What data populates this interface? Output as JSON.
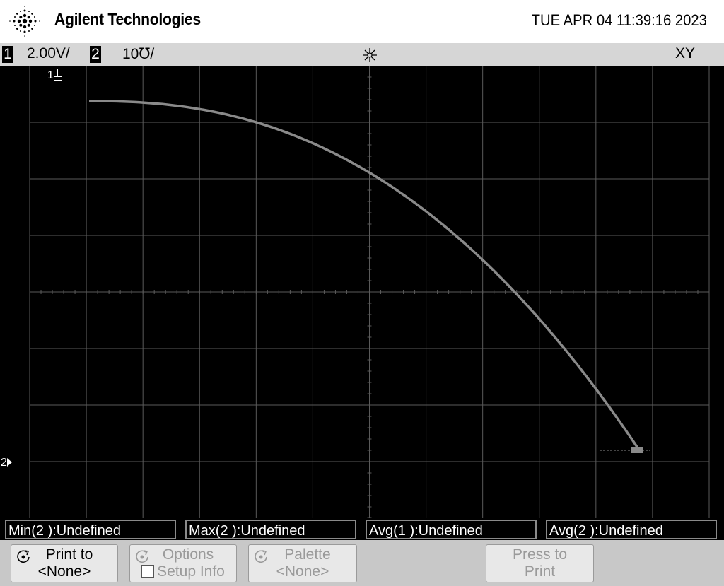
{
  "header": {
    "brand": "Agilent Technologies",
    "datetime": "TUE APR 04 11:39:16 2023"
  },
  "status": {
    "ch1_number": "1",
    "ch1_scale": "2.00V/",
    "ch2_number": "2",
    "ch2_scale": "10℧/",
    "mode": "XY"
  },
  "screen": {
    "ch1_marker": "1",
    "ch2_marker": "2",
    "trace_color": "#8a8a8a",
    "grid_color": "#5a5a5a"
  },
  "measurements": [
    {
      "label": "Min(2 ):Undefined"
    },
    {
      "label": "Max(2 ):Undefined"
    },
    {
      "label": "Avg(1 ):Undefined"
    },
    {
      "label": "Avg(2 ):Undefined"
    }
  ],
  "softkeys": {
    "print_to": {
      "line1": "Print to",
      "line2": "<None>"
    },
    "options": {
      "line1": "Options",
      "line2": "Setup Info"
    },
    "palette": {
      "line1": "Palette",
      "line2": "<None>"
    },
    "press_print": {
      "line1": "Press to",
      "line2": "Print"
    }
  }
}
